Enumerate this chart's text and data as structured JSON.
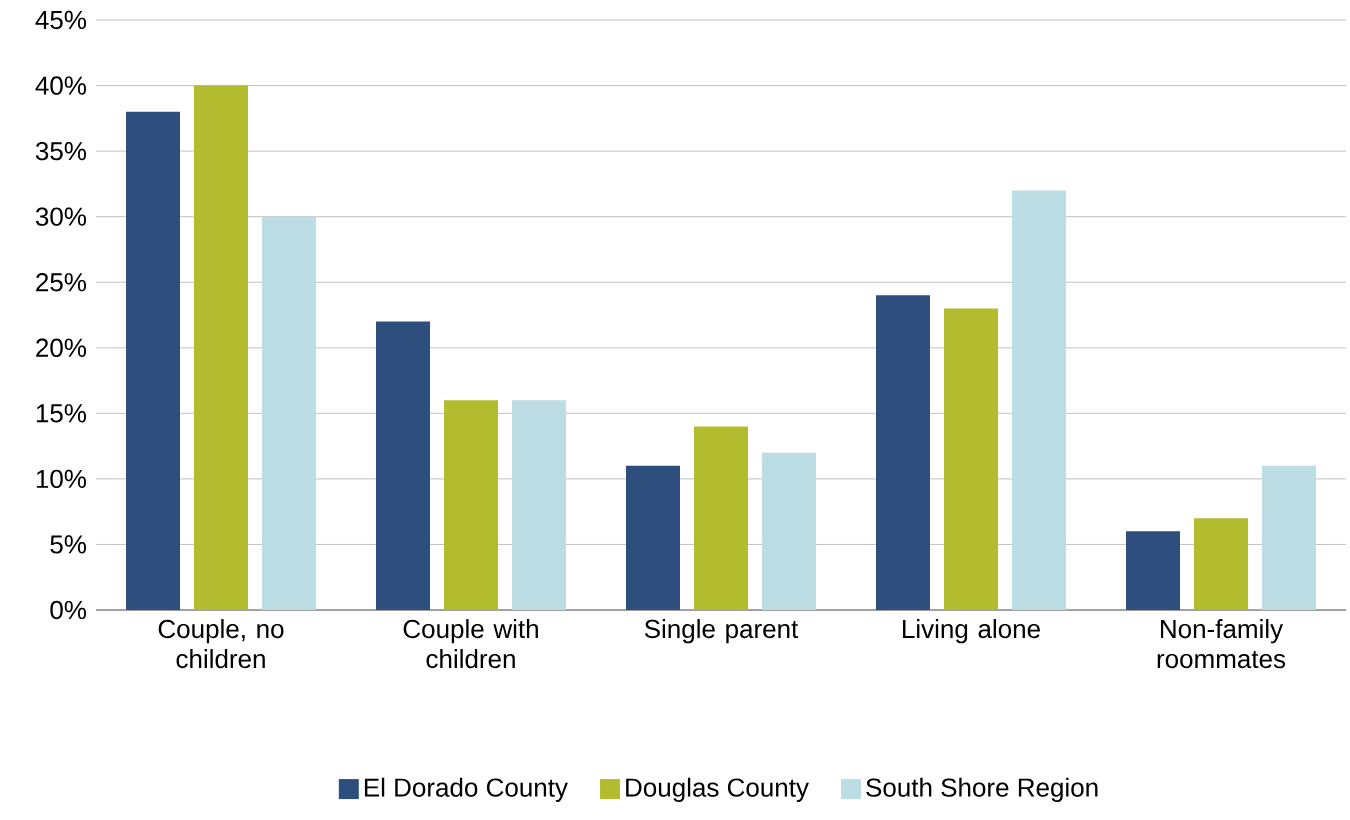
{
  "chart_data": {
    "type": "bar",
    "categories": [
      "Couple, no children",
      "Couple with children",
      "Single parent",
      "Living alone",
      "Non-family roommates"
    ],
    "series": [
      {
        "name": "El Dorado County",
        "color": "#2e4e7e",
        "values": [
          38,
          22,
          11,
          24,
          6
        ]
      },
      {
        "name": "Douglas County",
        "color": "#b3bb2f",
        "values": [
          40,
          16,
          14,
          23,
          7
        ]
      },
      {
        "name": "South Shore Region",
        "color": "#bcdde3",
        "values": [
          30,
          16,
          12,
          32,
          11
        ]
      }
    ],
    "ylim": [
      0,
      45
    ],
    "yticks": [
      {
        "value": 0,
        "label": "0%"
      },
      {
        "value": 5,
        "label": "5%"
      },
      {
        "value": 10,
        "label": "10%"
      },
      {
        "value": 15,
        "label": "15%"
      },
      {
        "value": 20,
        "label": "20%"
      },
      {
        "value": 25,
        "label": "25%"
      },
      {
        "value": 30,
        "label": "30%"
      },
      {
        "value": 35,
        "label": "35%"
      },
      {
        "value": 40,
        "label": "40%"
      },
      {
        "value": 45,
        "label": "45%"
      }
    ],
    "grid": "y",
    "legend": "bottom"
  }
}
